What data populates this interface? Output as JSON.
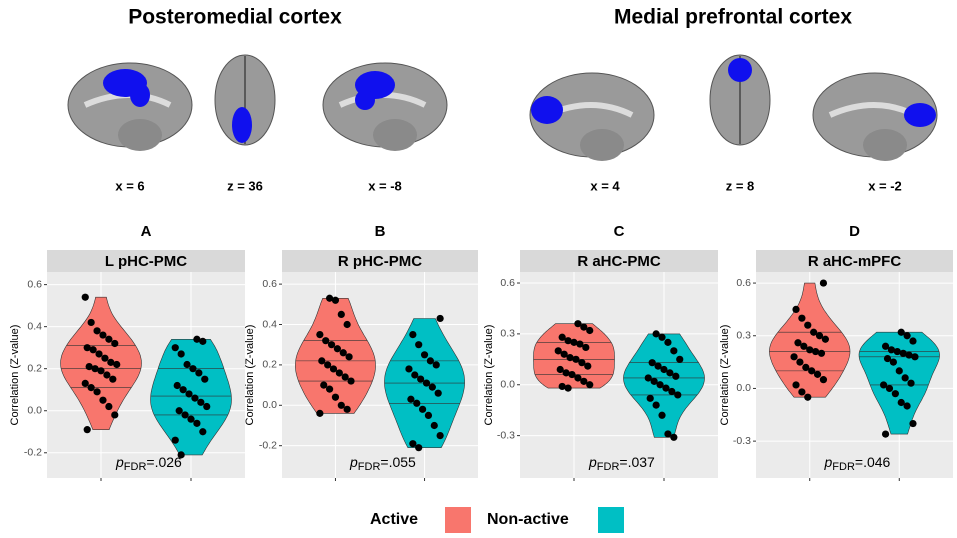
{
  "brain_panels": [
    {
      "title": "Posteromedial cortex",
      "coords": [
        "x = 6",
        "z = 36",
        "x = -8"
      ]
    },
    {
      "title": "Medial prefrontal cortex",
      "coords": [
        "x = 4",
        "z = 8",
        "x = -2"
      ]
    }
  ],
  "chart_data": [
    {
      "type": "violin",
      "panel_label": "A",
      "title": "L pHC-PMC",
      "ylabel": "Correlation (Z-value)",
      "ylim": [
        -0.32,
        0.66
      ],
      "yticks": [
        -0.2,
        {
          "value": 0,
          "label": "0.0"
        },
        0.2,
        0.4,
        0.6
      ],
      "annotation": {
        "italic": "p",
        "subscript": "FDR",
        "text": "=.026"
      },
      "series": [
        {
          "name": "Active",
          "color": "#f8766d",
          "quartiles": [
            0.11,
            0.2,
            0.31
          ],
          "values": [
            0.54,
            0.42,
            0.38,
            0.36,
            0.34,
            0.32,
            0.3,
            0.29,
            0.27,
            0.25,
            0.23,
            0.22,
            0.21,
            0.2,
            0.19,
            0.17,
            0.15,
            0.13,
            0.11,
            0.09,
            0.05,
            0.02,
            -0.02,
            -0.09
          ]
        },
        {
          "name": "Non-active",
          "color": "#00bfc4",
          "quartiles": [
            -0.02,
            0.07,
            0.2
          ],
          "values": [
            0.34,
            0.33,
            0.3,
            0.27,
            0.22,
            0.2,
            0.18,
            0.15,
            0.12,
            0.1,
            0.08,
            0.06,
            0.04,
            0.02,
            0,
            -0.02,
            -0.04,
            -0.06,
            -0.1,
            -0.14,
            -0.21
          ]
        }
      ]
    },
    {
      "type": "violin",
      "panel_label": "B",
      "title": "R pHC-PMC",
      "ylabel": "Correlation (Z-value)",
      "ylim": [
        -0.36,
        0.66
      ],
      "yticks": [
        -0.2,
        {
          "value": 0,
          "label": "0.0"
        },
        0.2,
        0.4,
        0.6
      ],
      "annotation": {
        "italic": "p",
        "subscript": "FDR",
        "text": "=.055"
      },
      "series": [
        {
          "name": "Active",
          "color": "#f8766d",
          "quartiles": [
            0.12,
            0.22,
            0.32
          ],
          "values": [
            0.53,
            0.52,
            0.45,
            0.4,
            0.35,
            0.32,
            0.3,
            0.28,
            0.26,
            0.24,
            0.22,
            0.2,
            0.18,
            0.16,
            0.14,
            0.12,
            0.1,
            0.08,
            0.04,
            0,
            -0.02,
            -0.04
          ]
        },
        {
          "name": "Non-active",
          "color": "#00bfc4",
          "quartiles": [
            0.01,
            0.11,
            0.22
          ],
          "values": [
            0.43,
            0.35,
            0.3,
            0.25,
            0.22,
            0.2,
            0.18,
            0.15,
            0.13,
            0.11,
            0.09,
            0.06,
            0.03,
            0.01,
            -0.02,
            -0.05,
            -0.1,
            -0.15,
            -0.19,
            -0.21
          ]
        }
      ]
    },
    {
      "type": "violin",
      "panel_label": "C",
      "title": "R aHC-PMC",
      "ylabel": "Correlation (Z-value)",
      "ylim": [
        -0.55,
        0.665
      ],
      "yticks": [
        -0.3,
        {
          "value": 0,
          "label": "0.0"
        },
        0.3,
        0.6
      ],
      "annotation": {
        "italic": "p",
        "subscript": "FDR",
        "text": "=.037"
      },
      "series": [
        {
          "name": "Active",
          "color": "#f8766d",
          "quartiles": [
            0.06,
            0.15,
            0.25
          ],
          "values": [
            0.36,
            0.34,
            0.32,
            0.28,
            0.26,
            0.25,
            0.24,
            0.22,
            0.2,
            0.18,
            0.16,
            0.15,
            0.13,
            0.11,
            0.09,
            0.07,
            0.06,
            0.04,
            0.02,
            0,
            -0.01,
            -0.02
          ]
        },
        {
          "name": "Non-active",
          "color": "#00bfc4",
          "quartiles": [
            -0.06,
            0.04,
            0.13
          ],
          "values": [
            0.3,
            0.28,
            0.25,
            0.2,
            0.15,
            0.13,
            0.11,
            0.09,
            0.07,
            0.05,
            0.04,
            0.02,
            0,
            -0.02,
            -0.04,
            -0.06,
            -0.08,
            -0.12,
            -0.18,
            -0.29,
            -0.31
          ]
        }
      ]
    },
    {
      "type": "violin",
      "panel_label": "D",
      "title": "R aHC-mPFC",
      "ylabel": "Correlation (Z-value)",
      "ylim": [
        -0.51,
        0.663
      ],
      "yticks": [
        -0.3,
        {
          "value": 0,
          "label": "0.0"
        },
        0.3,
        0.6
      ],
      "annotation": {
        "italic": "p",
        "subscript": "FDR",
        "text": "=.046"
      },
      "series": [
        {
          "name": "Active",
          "color": "#f8766d",
          "quartiles": [
            0.1,
            0.21,
            0.32
          ],
          "values": [
            0.6,
            0.45,
            0.4,
            0.36,
            0.32,
            0.3,
            0.28,
            0.26,
            0.24,
            0.22,
            0.21,
            0.2,
            0.18,
            0.15,
            0.12,
            0.1,
            0.08,
            0.05,
            0.02,
            -0.02,
            -0.05
          ]
        },
        {
          "name": "Non-active",
          "color": "#00bfc4",
          "quartiles": [
            0.02,
            0.18,
            0.21
          ],
          "values": [
            0.32,
            0.3,
            0.27,
            0.24,
            0.22,
            0.21,
            0.2,
            0.19,
            0.18,
            0.17,
            0.15,
            0.1,
            0.06,
            0.03,
            0.02,
            0,
            -0.03,
            -0.08,
            -0.1,
            -0.2,
            -0.26
          ]
        }
      ]
    }
  ]
}
